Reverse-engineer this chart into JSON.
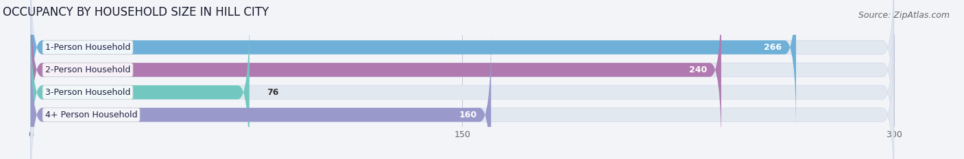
{
  "title": "OCCUPANCY BY HOUSEHOLD SIZE IN HILL CITY",
  "source": "Source: ZipAtlas.com",
  "categories": [
    "1-Person Household",
    "2-Person Household",
    "3-Person Household",
    "4+ Person Household"
  ],
  "values": [
    266,
    240,
    76,
    160
  ],
  "bar_colors": [
    "#6eb0d8",
    "#b07ab0",
    "#72c8c0",
    "#9999cc"
  ],
  "xlim": [
    -15,
    310
  ],
  "xticks": [
    0,
    150,
    300
  ],
  "title_fontsize": 12,
  "label_fontsize": 9,
  "value_fontsize": 9,
  "source_fontsize": 9,
  "background_color": "#f2f4f8",
  "bar_background_color": "#e2e8f0"
}
